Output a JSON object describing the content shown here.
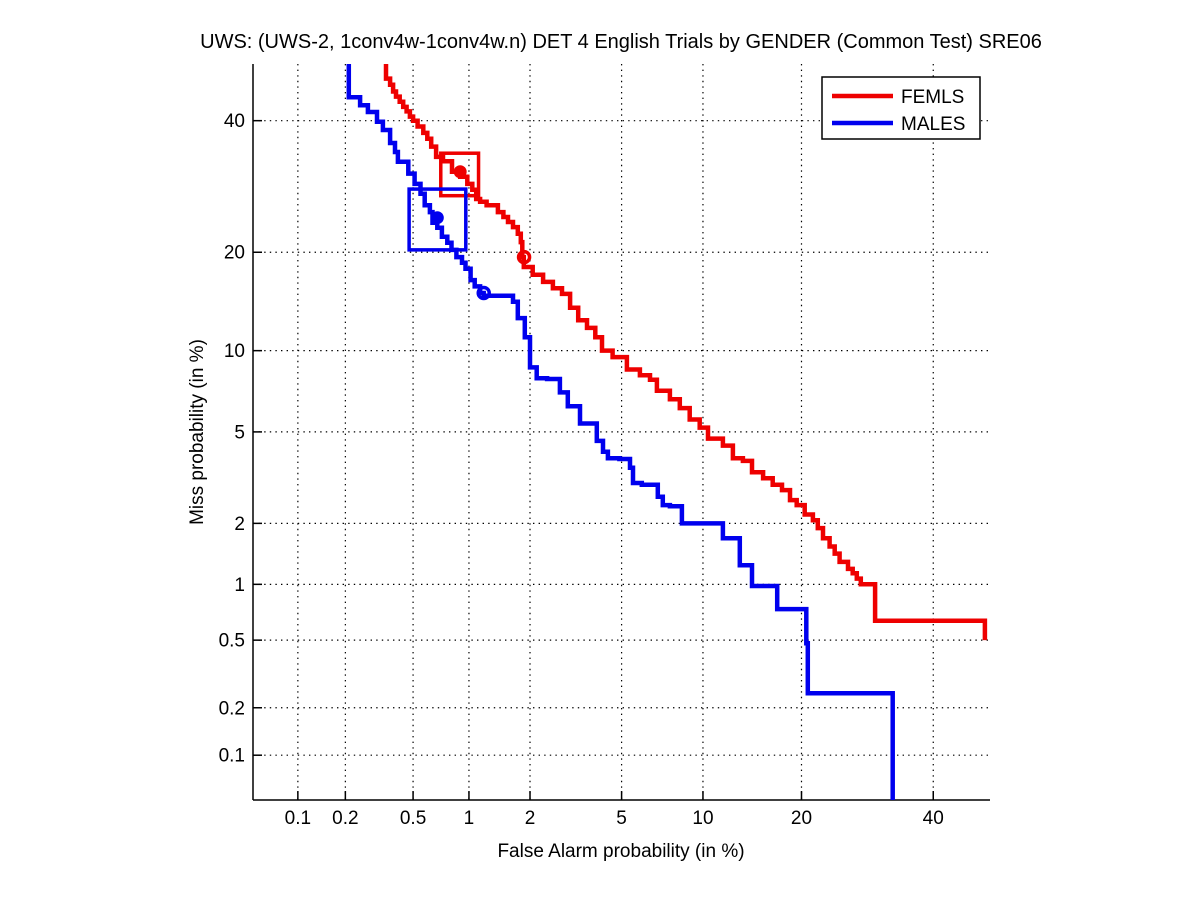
{
  "chart_data": {
    "type": "line",
    "subtype": "DET-curve",
    "title": "UWS: (UWS-2, 1conv4w-1conv4w.n) DET 4 English Trials by GENDER (Common Test) SRE06",
    "xlabel": "False Alarm probability (in %)",
    "ylabel": "Miss probability (in %)",
    "axis_scale": "normal-deviate (probit) on both axes",
    "xlim": [
      0.05,
      50
    ],
    "ylim": [
      0.05,
      50
    ],
    "xticks": [
      0.1,
      0.2,
      0.5,
      1,
      2,
      5,
      10,
      20,
      40
    ],
    "yticks": [
      40,
      20,
      10,
      5,
      2,
      1,
      0.5,
      0.2,
      0.1
    ],
    "grid": "dotted",
    "legend_position": "top-right",
    "series": [
      {
        "name": "FEMLS",
        "color": "#ee0000",
        "points": [
          [
            0.35,
            50
          ],
          [
            0.35,
            48.7
          ],
          [
            0.37,
            47.4
          ],
          [
            0.385,
            46.3
          ],
          [
            0.4,
            45.1
          ],
          [
            0.42,
            44.2
          ],
          [
            0.44,
            43.3
          ],
          [
            0.46,
            42.4
          ],
          [
            0.48,
            41.6
          ],
          [
            0.5,
            40.7
          ],
          [
            0.53,
            40.0
          ],
          [
            0.57,
            39.0
          ],
          [
            0.6,
            37.9
          ],
          [
            0.63,
            36.9
          ],
          [
            0.67,
            35.6
          ],
          [
            0.73,
            33.9
          ],
          [
            0.815,
            33.2
          ],
          [
            0.9,
            31.5
          ],
          [
            0.98,
            30.7
          ],
          [
            1.04,
            29.6
          ],
          [
            1.09,
            28.7
          ],
          [
            1.14,
            27.3
          ],
          [
            1.23,
            26.9
          ],
          [
            1.4,
            26.4
          ],
          [
            1.49,
            25.4
          ],
          [
            1.57,
            24.7
          ],
          [
            1.66,
            24.0
          ],
          [
            1.75,
            23.3
          ],
          [
            1.81,
            22.4
          ],
          [
            1.84,
            21.3
          ],
          [
            1.87,
            19.4
          ],
          [
            2.06,
            18.2
          ],
          [
            2.3,
            17.3
          ],
          [
            2.55,
            16.5
          ],
          [
            2.8,
            15.8
          ],
          [
            3.04,
            15.2
          ],
          [
            3.3,
            13.8
          ],
          [
            3.6,
            12.6
          ],
          [
            3.9,
            11.9
          ],
          [
            4.16,
            11.1
          ],
          [
            4.6,
            10.0
          ],
          [
            5.25,
            9.5
          ],
          [
            5.9,
            8.6
          ],
          [
            6.45,
            8.2
          ],
          [
            6.85,
            7.9
          ],
          [
            7.65,
            7.2
          ],
          [
            8.3,
            6.7
          ],
          [
            9.0,
            6.2
          ],
          [
            9.75,
            5.6
          ],
          [
            10.4,
            5.2
          ],
          [
            11.65,
            4.7
          ],
          [
            12.55,
            4.4
          ],
          [
            13.5,
            3.9
          ],
          [
            14.4,
            3.8
          ],
          [
            15.55,
            3.4
          ],
          [
            16.6,
            3.2
          ],
          [
            17.65,
            3.0
          ],
          [
            18.6,
            2.84
          ],
          [
            19.4,
            2.56
          ],
          [
            20.4,
            2.43
          ],
          [
            21.45,
            2.2
          ],
          [
            22.1,
            2.07
          ],
          [
            22.8,
            1.9
          ],
          [
            23.7,
            1.7
          ],
          [
            24.4,
            1.55
          ],
          [
            25.1,
            1.43
          ],
          [
            26.3,
            1.3
          ],
          [
            27.0,
            1.2
          ],
          [
            27.6,
            1.14
          ],
          [
            28.2,
            1.07
          ],
          [
            28.8,
            1.0
          ],
          [
            30.4,
            1.0
          ],
          [
            30.5,
            0.64
          ],
          [
            49.1,
            0.64
          ],
          [
            49.1,
            0.5
          ]
        ],
        "min_dcf_point": [
          0.9,
          31.5
        ],
        "min_dcf_box": {
          "fa": [
            0.71,
            1.12
          ],
          "miss": [
            27.8,
            34.5
          ]
        },
        "act_dcf_point": [
          1.875,
          19.4
        ]
      },
      {
        "name": "MALES",
        "color": "#0000ee",
        "points": [
          [
            0.21,
            50
          ],
          [
            0.21,
            46.0
          ],
          [
            0.246,
            44.1
          ],
          [
            0.274,
            42.7
          ],
          [
            0.31,
            41.5
          ],
          [
            0.336,
            39.8
          ],
          [
            0.37,
            38.4
          ],
          [
            0.395,
            36.2
          ],
          [
            0.41,
            34.7
          ],
          [
            0.47,
            33.1
          ],
          [
            0.51,
            31.2
          ],
          [
            0.55,
            29.6
          ],
          [
            0.58,
            28.1
          ],
          [
            0.62,
            26.4
          ],
          [
            0.64,
            25.4
          ],
          [
            0.68,
            23.9
          ],
          [
            0.72,
            23.2
          ],
          [
            0.77,
            22.0
          ],
          [
            0.81,
            21.2
          ],
          [
            0.86,
            20.3
          ],
          [
            0.92,
            19.4
          ],
          [
            0.96,
            18.7
          ],
          [
            1.02,
            18.0
          ],
          [
            1.07,
            16.7
          ],
          [
            1.14,
            16.0
          ],
          [
            1.19,
            15.3
          ],
          [
            1.66,
            15.0
          ],
          [
            1.75,
            14.4
          ],
          [
            1.89,
            12.8
          ],
          [
            2.0,
            11.1
          ],
          [
            2.0,
            8.8
          ],
          [
            2.15,
            8.75
          ],
          [
            2.4,
            8.0
          ],
          [
            2.74,
            7.95
          ],
          [
            2.97,
            7.1
          ],
          [
            3.36,
            6.3
          ],
          [
            3.36,
            5.7
          ],
          [
            3.96,
            5.4
          ],
          [
            4.2,
            4.6
          ],
          [
            4.4,
            4.15
          ],
          [
            4.9,
            3.9
          ],
          [
            5.4,
            3.87
          ],
          [
            5.55,
            3.55
          ],
          [
            6.0,
            3.05
          ],
          [
            6.9,
            3.0
          ],
          [
            7.2,
            2.65
          ],
          [
            7.65,
            2.43
          ],
          [
            8.45,
            2.4
          ],
          [
            8.45,
            2.0
          ],
          [
            11.65,
            2.0
          ],
          [
            13.2,
            1.7
          ],
          [
            14.4,
            1.25
          ],
          [
            17.1,
            0.98
          ],
          [
            20.6,
            0.74
          ],
          [
            20.8,
            0.48
          ],
          [
            33.2,
            0.245
          ],
          [
            33.2,
            0.05
          ]
        ],
        "min_dcf_point": [
          0.68,
          24.6
        ],
        "min_dcf_box": {
          "fa": [
            0.475,
            0.963
          ],
          "miss": [
            20.3,
            28.8
          ]
        },
        "act_dcf_point": [
          1.19,
          15.3
        ]
      }
    ]
  }
}
